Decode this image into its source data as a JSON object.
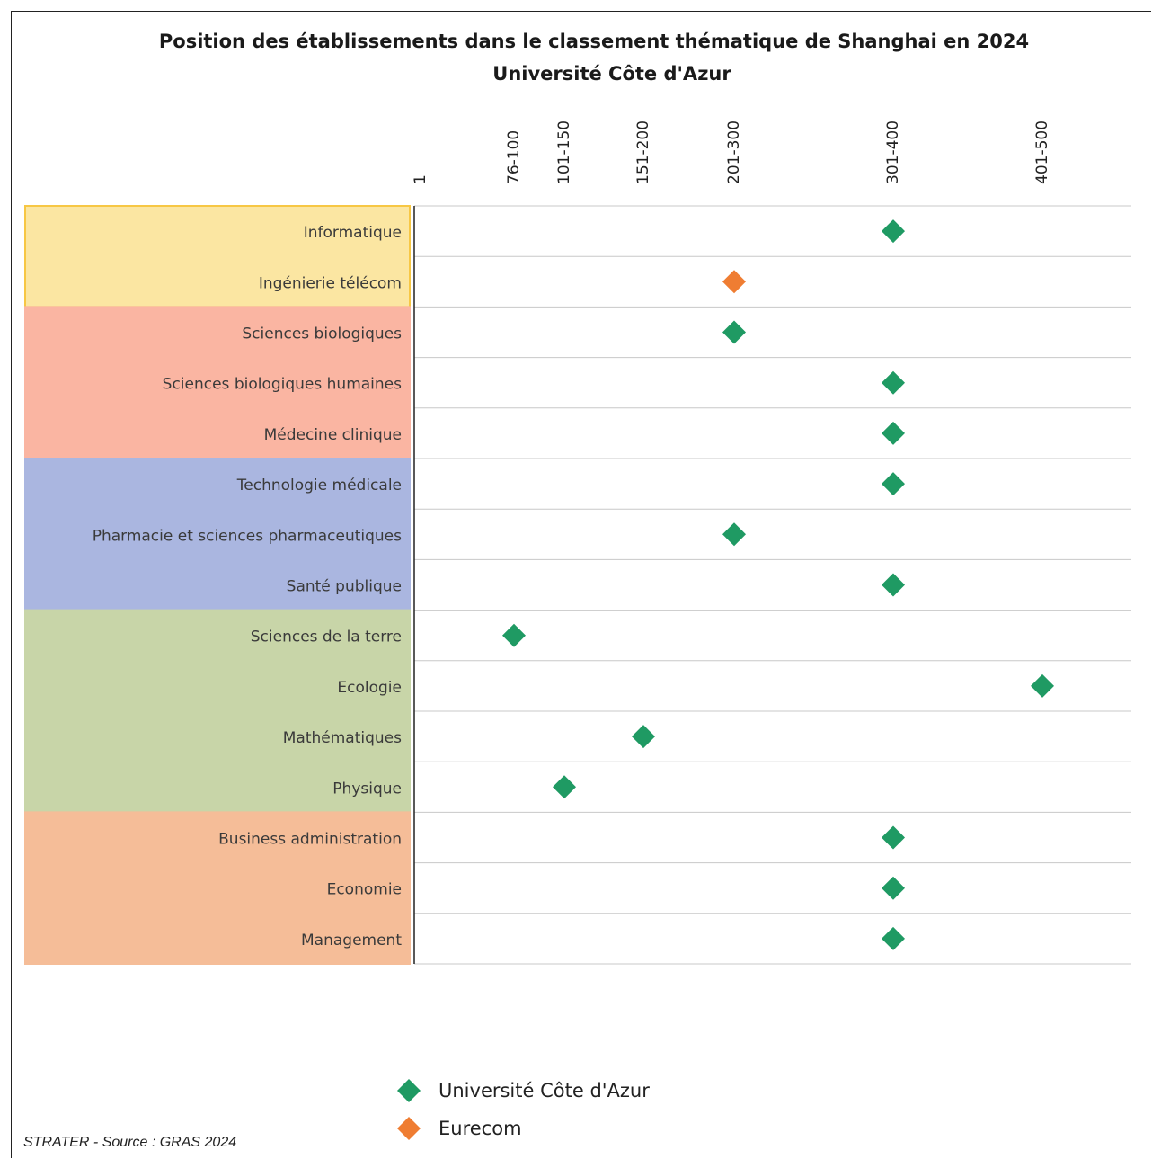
{
  "chart_data": {
    "type": "scatter",
    "title": "Position des établissements dans le classement thématique de Shanghai en 2024",
    "subtitle": "Université Côte d'Azur",
    "x_ticks": [
      "1",
      "76-100",
      "101-150",
      "151-200",
      "201-300",
      "301-400",
      "401-500"
    ],
    "categories": [
      "Informatique",
      "Ingénierie télécom",
      "Sciences biologiques",
      "Sciences biologiques humaines",
      "Médecine clinique",
      "Technologie médicale",
      "Pharmacie et sciences pharmaceutiques",
      "Santé publique",
      "Sciences de la terre",
      "Ecologie",
      "Mathématiques",
      "Physique",
      "Business administration",
      "Economie",
      "Management"
    ],
    "groups": [
      {
        "categories": [
          "Informatique",
          "Ingénierie télécom"
        ],
        "color": "#fbe6a2",
        "border": "#f7c744"
      },
      {
        "categories": [
          "Sciences biologiques",
          "Sciences biologiques humaines",
          "Médecine clinique"
        ],
        "color": "#fab5a2",
        "border": "#fab5a2"
      },
      {
        "categories": [
          "Technologie médicale",
          "Pharmacie et sciences pharmaceutiques",
          "Santé publique"
        ],
        "color": "#aab6e0",
        "border": "#aab6e0"
      },
      {
        "categories": [
          "Sciences de la terre",
          "Ecologie",
          "Mathématiques",
          "Physique"
        ],
        "color": "#c8d5a8",
        "border": "#c8d5a8"
      },
      {
        "categories": [
          "Business administration",
          "Economie",
          "Management"
        ],
        "color": "#f5bd98",
        "border": "#f5bd98"
      }
    ],
    "series": [
      {
        "name": "Université Côte d'Azur",
        "color": "#1f9a63",
        "points": [
          {
            "category": "Informatique",
            "rank": "301-400"
          },
          {
            "category": "Sciences biologiques",
            "rank": "201-300"
          },
          {
            "category": "Sciences biologiques humaines",
            "rank": "301-400"
          },
          {
            "category": "Médecine clinique",
            "rank": "301-400"
          },
          {
            "category": "Technologie médicale",
            "rank": "301-400"
          },
          {
            "category": "Pharmacie et sciences pharmaceutiques",
            "rank": "201-300"
          },
          {
            "category": "Santé publique",
            "rank": "301-400"
          },
          {
            "category": "Sciences de la terre",
            "rank": "76-100"
          },
          {
            "category": "Ecologie",
            "rank": "401-500"
          },
          {
            "category": "Mathématiques",
            "rank": "151-200"
          },
          {
            "category": "Physique",
            "rank": "101-150"
          },
          {
            "category": "Business administration",
            "rank": "301-400"
          },
          {
            "category": "Economie",
            "rank": "301-400"
          },
          {
            "category": "Management",
            "rank": "301-400"
          }
        ]
      },
      {
        "name": "Eurecom",
        "color": "#ef7d32",
        "points": [
          {
            "category": "Ingénierie télécom",
            "rank": "201-300"
          }
        ]
      }
    ],
    "legend_position": "bottom",
    "grid": true
  },
  "source": "STRATER - Source : GRAS 2024"
}
